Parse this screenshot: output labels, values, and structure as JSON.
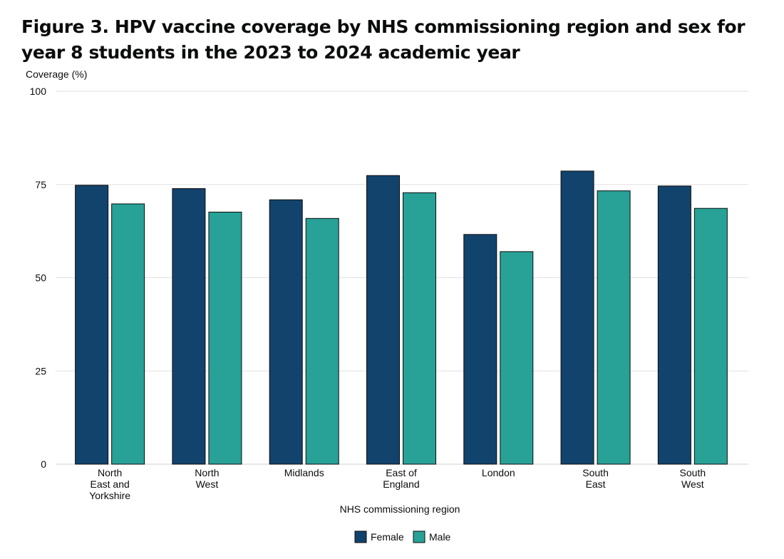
{
  "page": {
    "title": "Figure 3. HPV vaccine coverage by NHS commissioning region and sex for year 8 students in the 2023 to 2024 academic year"
  },
  "chart_data": {
    "type": "bar",
    "ylabel": "Coverage (%)",
    "xlabel": "NHS commissioning region",
    "ylim": [
      0,
      100
    ],
    "yticks": [
      "0",
      "25",
      "50",
      "75",
      "100"
    ],
    "grid": true,
    "legend_position": "bottom",
    "categories": [
      [
        "North",
        "East and",
        "Yorkshire"
      ],
      [
        "North",
        "West"
      ],
      [
        "Midlands"
      ],
      [
        "East of",
        "England"
      ],
      [
        "London"
      ],
      [
        "South",
        "East"
      ],
      [
        "South",
        "West"
      ]
    ],
    "series": [
      {
        "name": "Female",
        "color": "#12436d",
        "values": [
          74.8,
          73.9,
          70.9,
          77.4,
          61.6,
          78.6,
          74.6
        ]
      },
      {
        "name": "Male",
        "color": "#28a197",
        "values": [
          69.8,
          67.6,
          65.9,
          72.8,
          57.0,
          73.3,
          68.6
        ]
      }
    ]
  }
}
